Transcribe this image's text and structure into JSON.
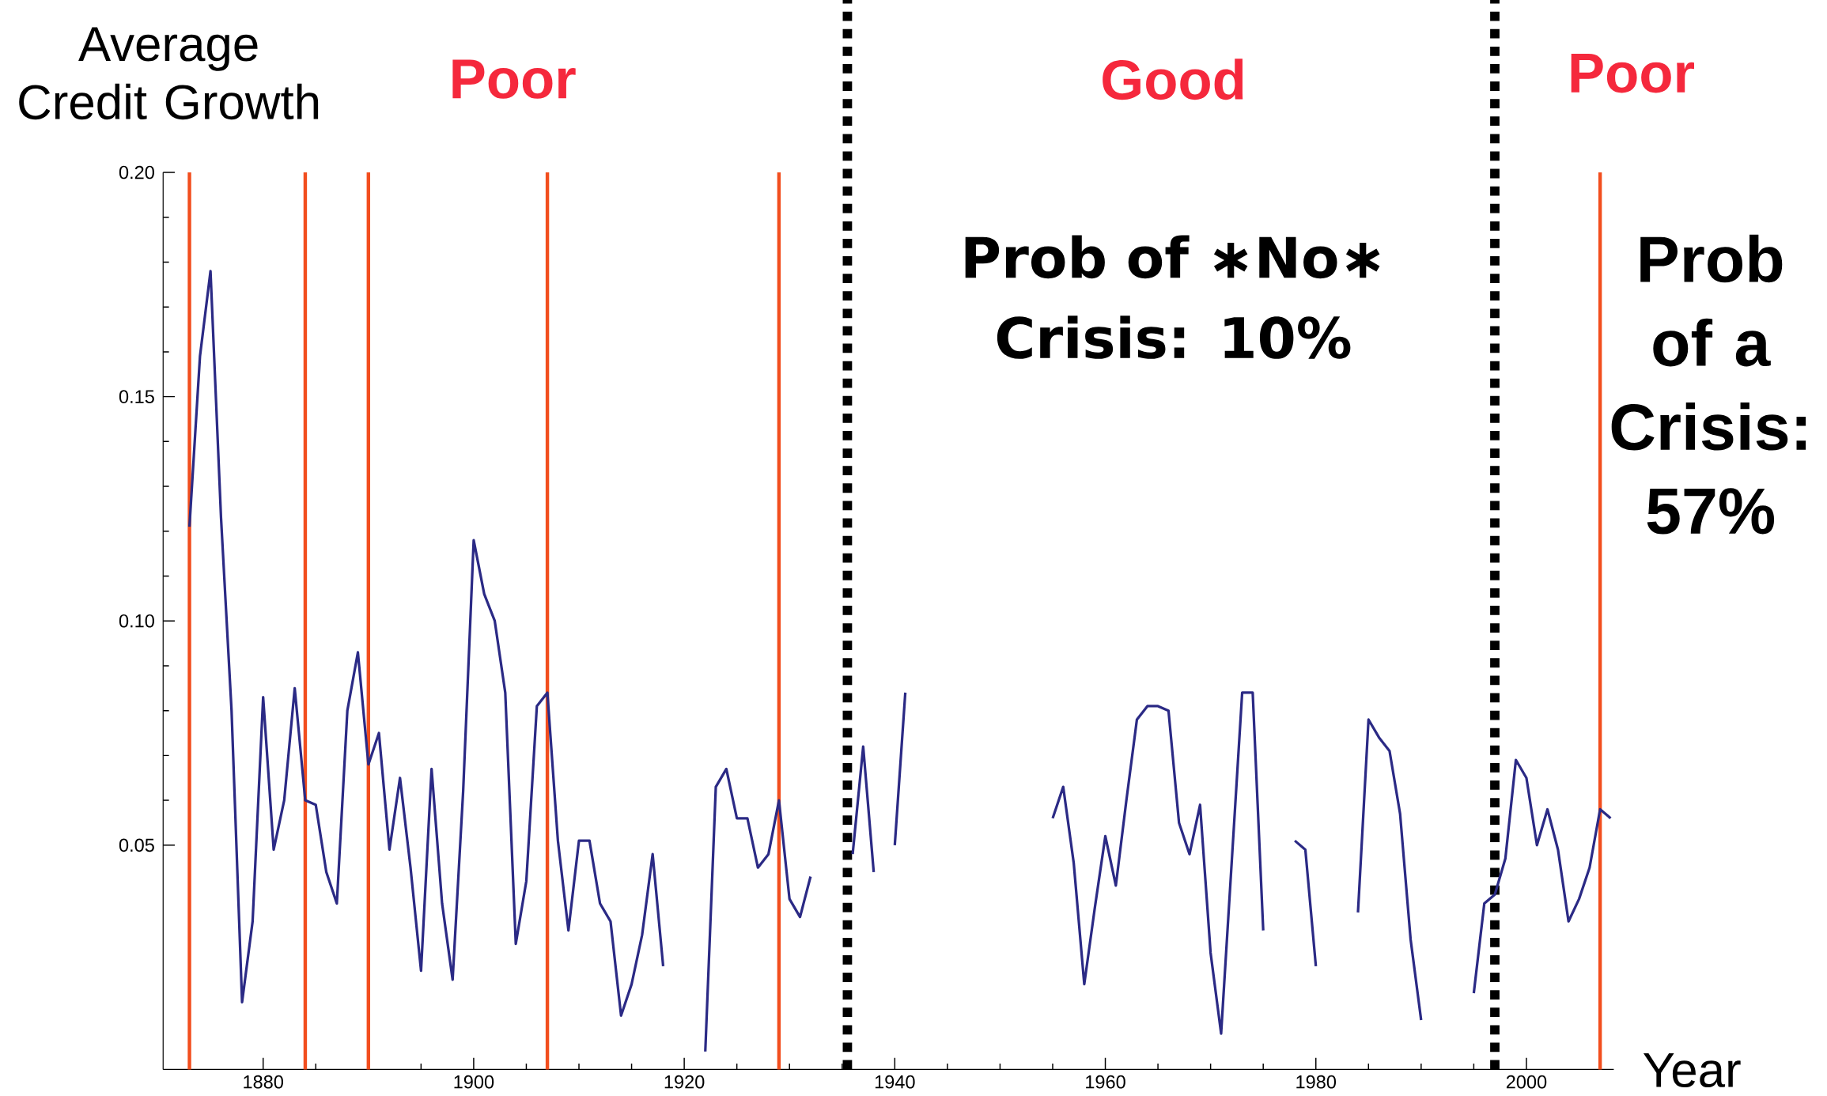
{
  "chart_data": {
    "type": "line",
    "xlabel": "Year",
    "ylabel": "Average Credit Growth",
    "x": [
      1873,
      1874,
      1875,
      1876,
      1877,
      1878,
      1879,
      1880,
      1881,
      1882,
      1883,
      1884,
      1885,
      1886,
      1887,
      1888,
      1889,
      1890,
      1891,
      1892,
      1893,
      1894,
      1895,
      1896,
      1897,
      1898,
      1899,
      1900,
      1901,
      1902,
      1903,
      1904,
      1905,
      1906,
      1907,
      1908,
      1909,
      1910,
      1911,
      1912,
      1913,
      1914,
      1915,
      1916,
      1917,
      1918,
      1919,
      1920,
      1921,
      1922,
      1923,
      1924,
      1925,
      1926,
      1927,
      1928,
      1929,
      1930,
      1931,
      1932,
      1933,
      1934,
      1935,
      1936,
      1937,
      1938,
      1939,
      1940,
      1941,
      1942,
      1943,
      1944,
      1945,
      1946,
      1947,
      1948,
      1949,
      1950,
      1951,
      1952,
      1953,
      1954,
      1955,
      1956,
      1957,
      1958,
      1959,
      1960,
      1961,
      1962,
      1963,
      1964,
      1965,
      1966,
      1967,
      1968,
      1969,
      1970,
      1971,
      1972,
      1973,
      1974,
      1975,
      1976,
      1977,
      1978,
      1979,
      1980,
      1981,
      1982,
      1983,
      1984,
      1985,
      1986,
      1987,
      1988,
      1989,
      1990,
      1991,
      1992,
      1993,
      1994,
      1995,
      1996,
      1997,
      1998,
      1999,
      2000,
      2001,
      2002,
      2003,
      2004,
      2005,
      2006,
      2007,
      2008
    ],
    "values": [
      0.121,
      0.159,
      0.178,
      0.123,
      0.08,
      0.015,
      0.033,
      0.083,
      0.049,
      0.06,
      0.085,
      0.06,
      0.059,
      0.044,
      0.037,
      0.08,
      0.093,
      0.068,
      0.075,
      0.049,
      0.065,
      0.045,
      0.022,
      0.067,
      0.037,
      0.02,
      0.062,
      0.118,
      0.106,
      0.1,
      0.084,
      0.028,
      0.042,
      0.081,
      0.084,
      0.051,
      0.031,
      0.051,
      0.051,
      0.037,
      0.033,
      0.012,
      0.019,
      0.03,
      0.048,
      0.023,
      null,
      null,
      null,
      0.004,
      0.063,
      0.067,
      0.056,
      0.056,
      0.045,
      0.048,
      0.06,
      0.038,
      0.034,
      0.043,
      null,
      null,
      null,
      0.048,
      0.072,
      0.044,
      null,
      0.05,
      0.084,
      null,
      null,
      null,
      null,
      null,
      null,
      null,
      null,
      null,
      null,
      null,
      null,
      null,
      0.056,
      0.063,
      0.046,
      0.019,
      0.036,
      0.052,
      0.041,
      0.06,
      0.078,
      0.081,
      0.081,
      0.08,
      0.055,
      0.048,
      0.059,
      0.026,
      0.008,
      0.046,
      0.084,
      0.084,
      0.031,
      null,
      null,
      0.051,
      0.049,
      0.023,
      null,
      null,
      null,
      0.035,
      0.078,
      0.074,
      0.071,
      0.057,
      0.029,
      0.011,
      null,
      null,
      null,
      null,
      0.017,
      0.037,
      0.039,
      0.047,
      0.069,
      0.065,
      0.05,
      0.058,
      0.049,
      0.033,
      0.038,
      0.045,
      0.058,
      0.056
    ],
    "color": "#2b2a85",
    "xlim": [
      1870.5,
      2008.3
    ],
    "xticks": [
      1880,
      1900,
      1920,
      1940,
      1960,
      1980,
      2000
    ],
    "ylim": [
      0,
      0.2
    ],
    "yticks": [
      0.05,
      {
        "value": 0.1,
        "label": "0.10"
      },
      0.15,
      {
        "value": 0.2,
        "label": "0.20"
      }
    ],
    "ref_lines": [
      {
        "axis": "x",
        "value": 1873,
        "color": "#f24e1e",
        "line_style": "solid"
      },
      {
        "axis": "x",
        "value": 1884,
        "color": "#f24e1e",
        "line_style": "solid"
      },
      {
        "axis": "x",
        "value": 1890,
        "color": "#f24e1e",
        "line_style": "solid"
      },
      {
        "axis": "x",
        "value": 1907,
        "color": "#f24e1e",
        "line_style": "solid"
      },
      {
        "axis": "x",
        "value": 1929,
        "color": "#f24e1e",
        "line_style": "solid"
      },
      {
        "axis": "x",
        "value": 2007,
        "color": "#f24e1e",
        "line_style": "solid"
      },
      {
        "axis": "x",
        "value": 1935.5,
        "color": "#000000",
        "line_style": "dotted"
      },
      {
        "axis": "x",
        "value": 1997,
        "color": "#000000",
        "line_style": "dotted"
      }
    ],
    "annotations": [
      "Poor",
      "Good",
      "Poor",
      "Prob of ∗No∗ Crisis: 10%",
      "Prob of a Crisis: 57%"
    ]
  }
}
